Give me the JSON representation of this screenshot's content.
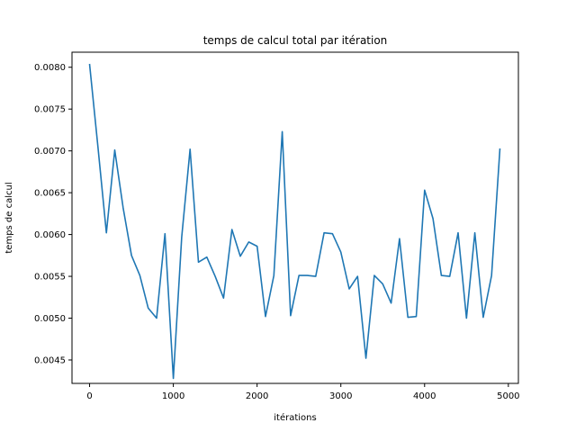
{
  "chart_data": {
    "type": "line",
    "title": "temps de calcul total par itération",
    "xlabel": "itérations",
    "ylabel": "temps de calcul",
    "xlim": [
      -210,
      5120
    ],
    "ylim": [
      0.00422,
      0.00818
    ],
    "x_ticks": [
      0,
      1000,
      2000,
      3000,
      4000,
      5000
    ],
    "y_ticks": [
      0.0045,
      0.005,
      0.0055,
      0.006,
      0.0065,
      0.007,
      0.0075,
      0.008
    ],
    "x_tick_labels": [
      "0",
      "1000",
      "2000",
      "3000",
      "4000",
      "5000"
    ],
    "y_tick_labels": [
      "0.0045",
      "0.0050",
      "0.0055",
      "0.0060",
      "0.0065",
      "0.0070",
      "0.0075",
      "0.0080"
    ],
    "grid": false,
    "series": [
      {
        "color": "#1f77b4",
        "x": [
          0,
          100,
          200,
          300,
          400,
          500,
          600,
          700,
          800,
          900,
          1000,
          1100,
          1200,
          1300,
          1400,
          1500,
          1600,
          1700,
          1800,
          1900,
          2000,
          2100,
          2200,
          2300,
          2400,
          2500,
          2600,
          2700,
          2800,
          2900,
          3000,
          3100,
          3200,
          3300,
          3400,
          3500,
          3600,
          3700,
          3800,
          3900,
          4000,
          4100,
          4200,
          4300,
          4400,
          4500,
          4600,
          4700,
          4800,
          4900
        ],
        "y": [
          0.00804,
          0.00705,
          0.00602,
          0.00701,
          0.00632,
          0.00575,
          0.00551,
          0.00512,
          0.005,
          0.00601,
          0.00428,
          0.00597,
          0.00702,
          0.00567,
          0.00573,
          0.0055,
          0.00524,
          0.00606,
          0.00574,
          0.00591,
          0.00586,
          0.00502,
          0.00551,
          0.00723,
          0.00503,
          0.00551,
          0.00551,
          0.0055,
          0.00602,
          0.00601,
          0.00579,
          0.00535,
          0.0055,
          0.00452,
          0.00551,
          0.00541,
          0.00518,
          0.00595,
          0.00501,
          0.00502,
          0.00653,
          0.00619,
          0.00551,
          0.0055,
          0.00602,
          0.005,
          0.00602,
          0.00501,
          0.00551,
          0.00703
        ]
      }
    ]
  }
}
